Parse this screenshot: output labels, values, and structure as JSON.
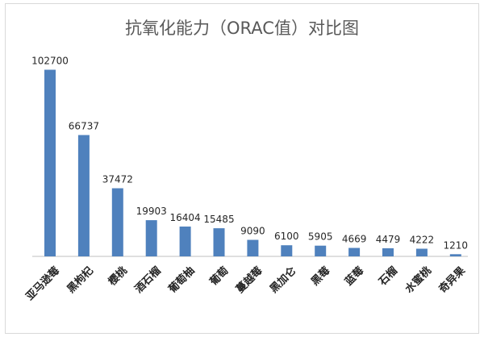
{
  "chart_data": {
    "type": "bar",
    "title": "抗氧化能力（ORAC值）对比图",
    "xlabel": "",
    "ylabel": "",
    "categories": [
      "亚马逊莓",
      "黑枸杞",
      "樱桃",
      "酒石榴",
      "葡萄柚",
      "葡萄",
      "蔓越莓",
      "黑加仑",
      "黑莓",
      "蓝莓",
      "石榴",
      "水蜜桃",
      "奇异果"
    ],
    "values": [
      102700,
      66737,
      37472,
      19903,
      16404,
      15485,
      9090,
      6100,
      5905,
      4669,
      4479,
      4222,
      1210
    ],
    "value_labels": [
      "102700",
      "66737",
      "37472",
      "19903",
      "16404",
      "15485",
      "9090",
      "6100",
      "5905",
      "4669",
      "4479",
      "4222",
      "1210"
    ],
    "ylim": [
      0,
      110000
    ],
    "grid": false,
    "bar_color": "#4f81bd"
  }
}
